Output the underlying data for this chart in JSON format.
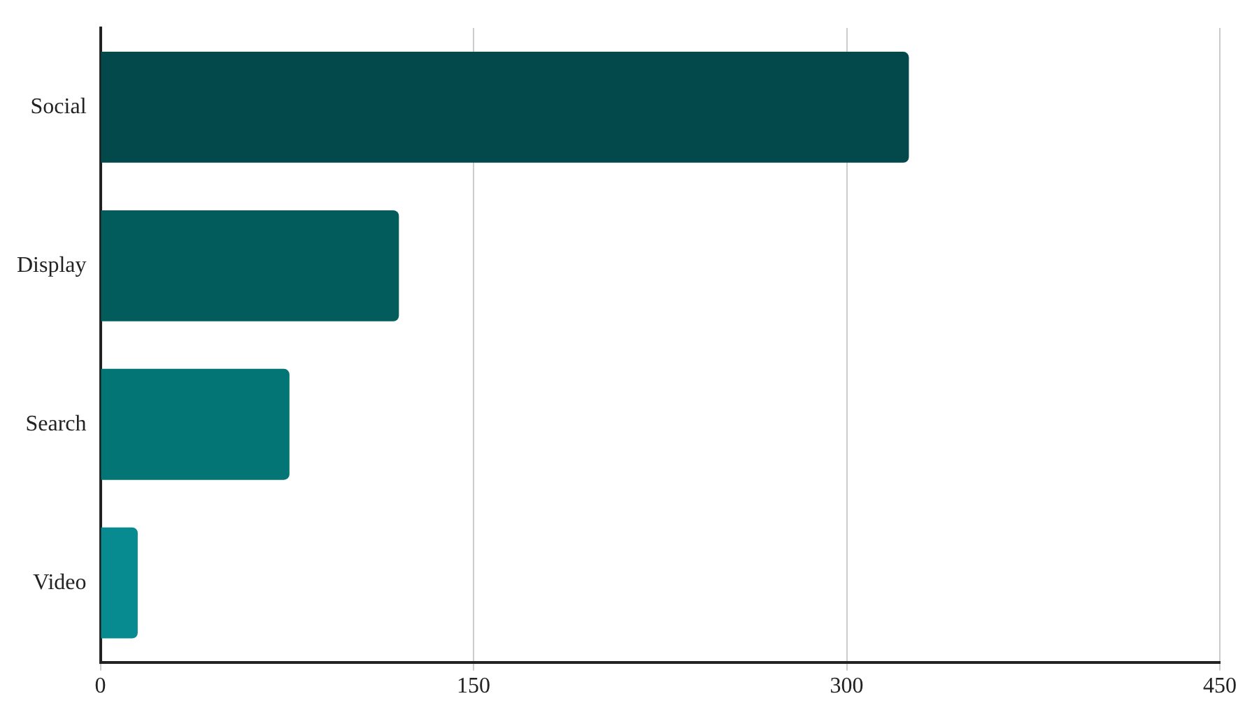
{
  "chart_data": {
    "type": "bar",
    "orientation": "horizontal",
    "categories": [
      "Social",
      "Display",
      "Search",
      "Video"
    ],
    "values": [
      325,
      120,
      76,
      15
    ],
    "colors": [
      "#03494c",
      "#035c5c",
      "#037575",
      "#078b90"
    ],
    "xlim": [
      0,
      450
    ],
    "xticks": [
      0,
      150,
      300,
      450
    ],
    "grid": "x"
  }
}
